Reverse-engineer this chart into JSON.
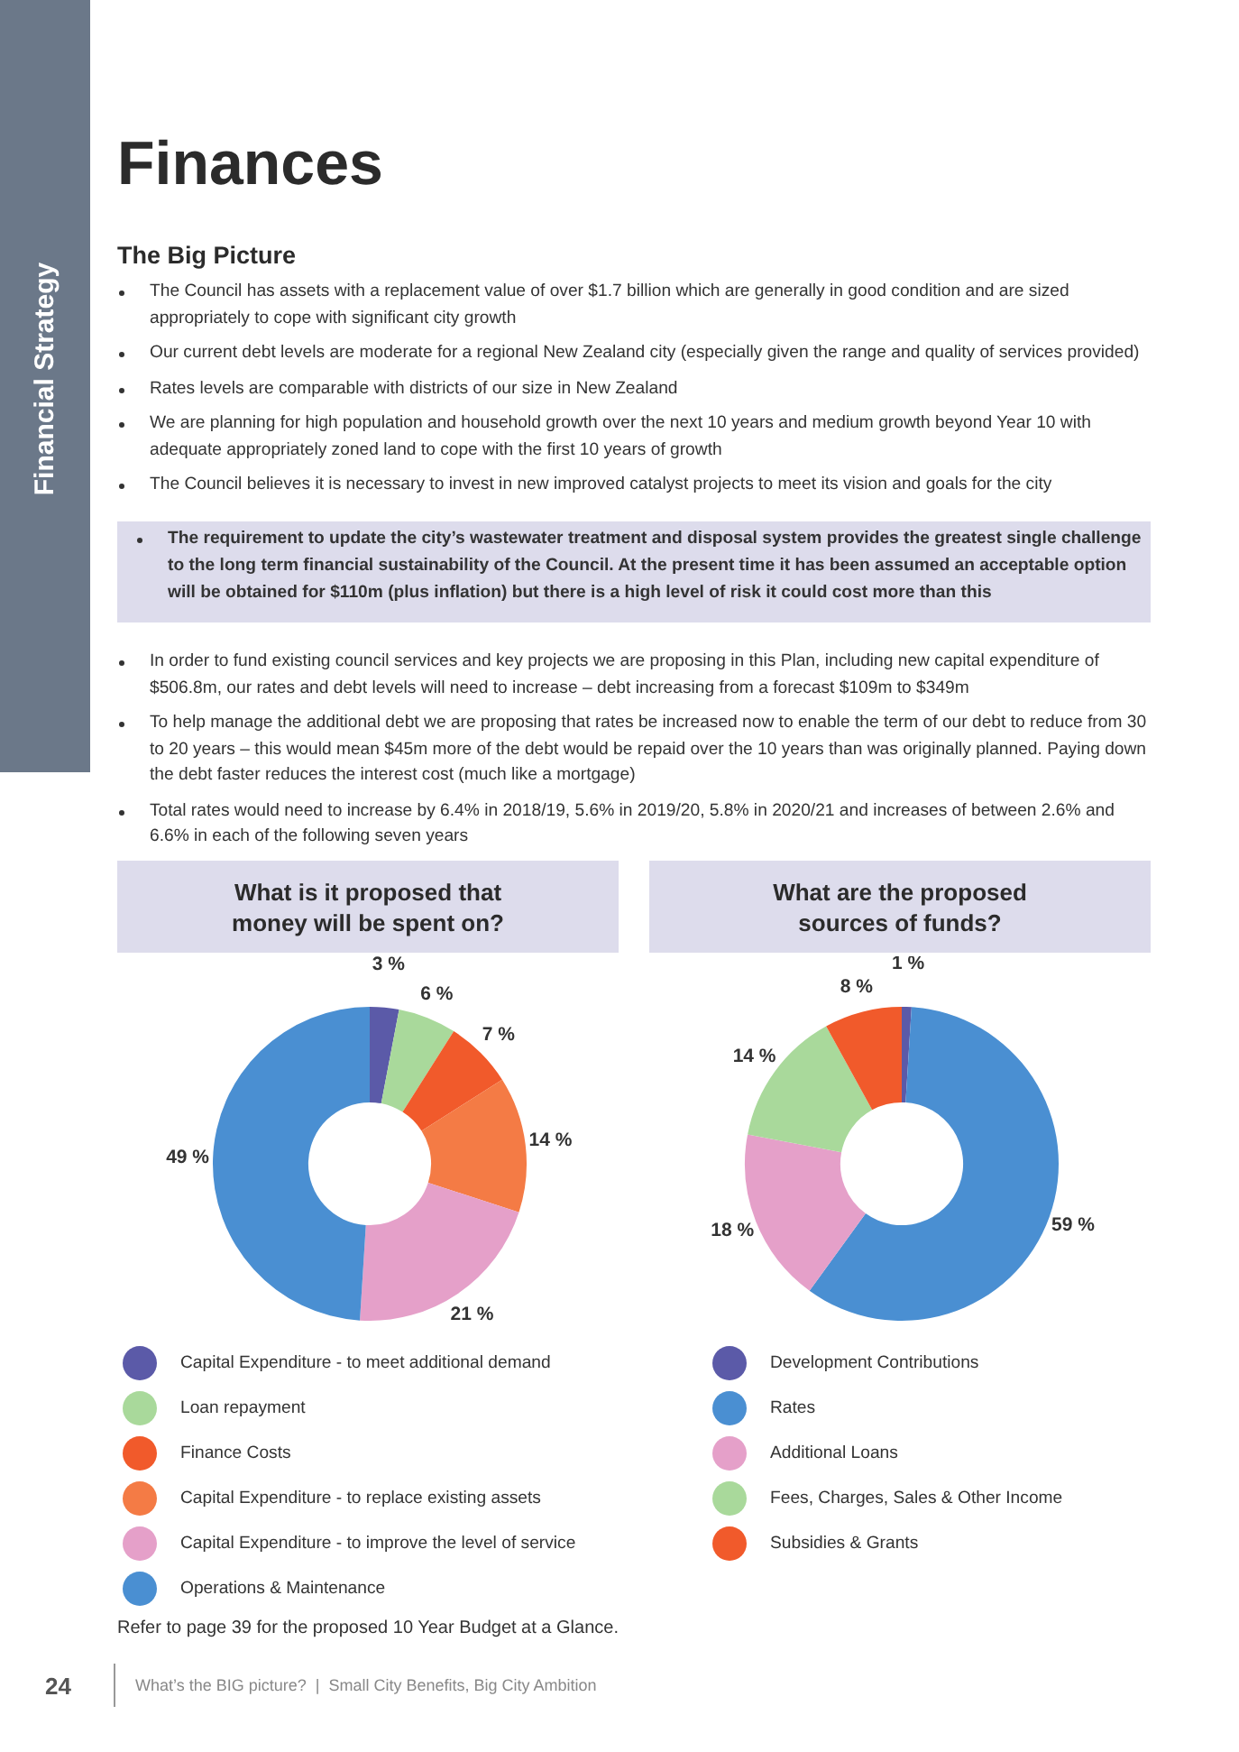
{
  "chart_data": [
    {
      "type": "other",
      "title": "Finances",
      "subtitle": "The Big Picture",
      "annotations": [
        "Financial Strategy",
        "The Council has assets with a replacement value of over $1.7 billion which are generally in good condition and are sized appropriately to cope with significant city growth",
        "Our current debt levels are moderate for a regional New Zealand city (especially given the range and quality of services provided)",
        "Rates levels are comparable with districts of our size in New Zealand",
        "We are planning for high population and household growth over the next 10 years and medium growth beyond Year 10 with adequate appropriately zoned land to cope with the first 10 years of growth",
        "The Council believes it is necessary to invest in new improved catalyst projects to meet its vision and goals for the city",
        "The requirement to update the city’s wastewater treatment and disposal system provides the greatest single challenge to the long term financial sustainability of the Council. At the present time it has been assumed an acceptable option will be obtained for $110m (plus inflation) but there is a high level of risk it could cost more than this",
        "In order to fund existing council services and key projects we are proposing in this Plan, including new capital expenditure of $506.8m, our rates and debt levels will need to increase – debt increasing from a forecast $109m to $349m",
        "To help manage the additional debt we are proposing that rates be increased now to enable the term of our debt to reduce from 30 to 20 years – this would mean $45m more of the debt would be repaid over the 10 years than was originally planned. Paying down the debt faster reduces the interest cost (much like a mortgage)",
        "Total rates would need to increase by 6.4% in 2018/19, 5.6% in 2019/20, 5.8% in 2020/21 and increases of between 2.6% and 6.6% in each of the following seven years",
        "Refer to page 39 for the proposed 10 Year Budget at a Glance.",
        "24",
        "What’s the BIG picture?  |  Small City Benefits, Big City Ambition"
      ]
    },
    {
      "type": "donut",
      "title": "What is it proposed that money will be spent on?",
      "legend": "bottom",
      "categories": [
        "Capital Expenditure - to meet additional demand",
        "Loan repayment",
        "Finance Costs",
        "Capital Expenditure - to replace existing assets",
        "Capital Expenditure - to improve the level of service",
        "Operations & Maintenance"
      ],
      "values": [
        3,
        6,
        7,
        14,
        21,
        49
      ],
      "colors": [
        "#5b5aa8",
        "#a9d99b",
        "#f15a2b",
        "#f47b45",
        "#e5a0c9",
        "#4a8fd2"
      ],
      "value_labels": [
        "3 %",
        "6 %",
        "7 %",
        "14 %",
        "21 %",
        "49 %"
      ]
    },
    {
      "type": "donut",
      "title": "What are the proposed sources of funds?",
      "legend": "bottom",
      "categories": [
        "Development Contributions",
        "Rates",
        "Additional Loans",
        "Fees, Charges, Sales & Other Income",
        "Subsidies & Grants"
      ],
      "values": [
        1,
        59,
        18,
        14,
        8
      ],
      "colors": [
        "#5b5aa8",
        "#4a8fd2",
        "#e5a0c9",
        "#a9d99b",
        "#f15a2b"
      ],
      "value_labels": [
        "1 %",
        "59 %",
        "18 %",
        "14 %",
        "8 %"
      ]
    }
  ]
}
